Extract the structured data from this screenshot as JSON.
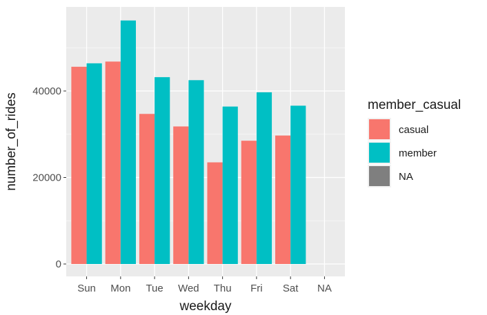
{
  "chart_data": {
    "type": "bar",
    "categories": [
      "Sun",
      "Mon",
      "Tue",
      "Wed",
      "Thu",
      "Fri",
      "Sat",
      "NA"
    ],
    "series": [
      {
        "name": "casual",
        "color": "#F8766D",
        "values": [
          45600,
          46800,
          34700,
          31800,
          23500,
          28500,
          29700,
          null
        ]
      },
      {
        "name": "member",
        "color": "#00BFC4",
        "values": [
          46400,
          56300,
          43200,
          42500,
          36400,
          39700,
          36600,
          null
        ]
      }
    ],
    "xlabel": "weekday",
    "ylabel": "number_of_rides",
    "ylim": [
      0,
      60000
    ],
    "y_ticks": [
      0,
      20000,
      40000
    ],
    "grid": true,
    "legend": {
      "title": "member_casual",
      "position": "right",
      "items": [
        {
          "label": "casual",
          "color": "#F8766D"
        },
        {
          "label": "member",
          "color": "#00BFC4"
        },
        {
          "label": "NA",
          "color": "#7F7F7F"
        }
      ]
    }
  }
}
